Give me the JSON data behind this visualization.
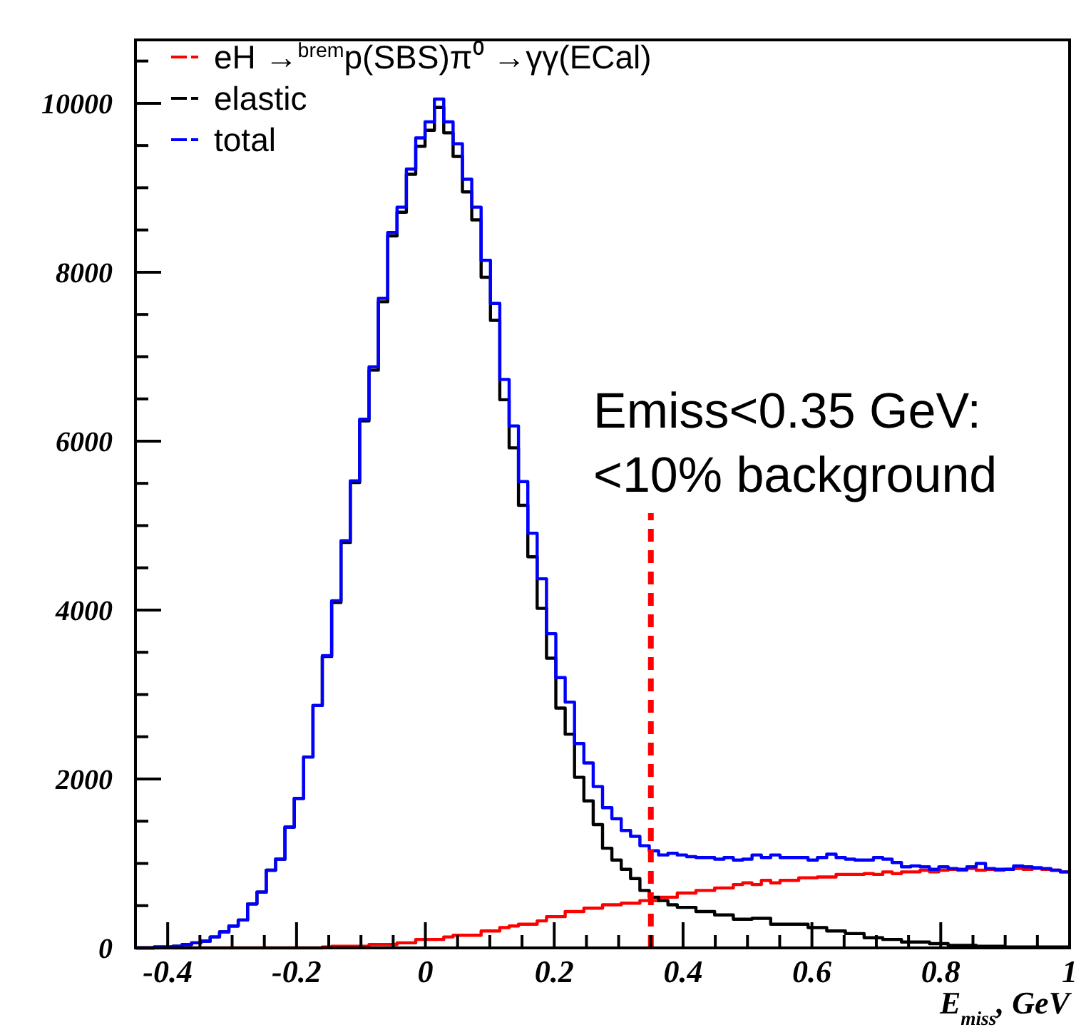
{
  "chart_data": {
    "type": "histogram",
    "bins": [
      -0.45,
      -0.4355,
      -0.421,
      -0.4065,
      -0.392,
      -0.3775,
      -0.363,
      -0.3485,
      -0.334,
      -0.3195,
      -0.305,
      -0.2905,
      -0.276,
      -0.2615,
      -0.247,
      -0.2325,
      -0.218,
      -0.2035,
      -0.189,
      -0.1745,
      -0.16,
      -0.1455,
      -0.131,
      -0.1165,
      -0.102,
      -0.0875,
      -0.073,
      -0.0585,
      -0.044,
      -0.0295,
      -0.015,
      -0.0005,
      0.014,
      0.0285,
      0.043,
      0.0575,
      0.072,
      0.0865,
      0.101,
      0.1155,
      0.13,
      0.1445,
      0.159,
      0.1735,
      0.188,
      0.2025,
      0.217,
      0.2315,
      0.246,
      0.2605,
      0.275,
      0.2895,
      0.304,
      0.3185,
      0.333,
      0.3475,
      0.362,
      0.3765,
      0.391,
      0.4055,
      0.42,
      0.4345,
      0.449,
      0.4635,
      0.478,
      0.4925,
      0.507,
      0.5215,
      0.536,
      0.5505,
      0.565,
      0.5795,
      0.594,
      0.6085,
      0.623,
      0.6375,
      0.652,
      0.6665,
      0.681,
      0.6955,
      0.71,
      0.7245,
      0.739,
      0.7535,
      0.768,
      0.7825,
      0.797,
      0.8115,
      0.826,
      0.8405,
      0.855,
      0.8695,
      0.884,
      0.8985,
      0.913,
      0.9275,
      0.942,
      0.9565,
      0.971,
      0.9855,
      1.0
    ],
    "series": [
      {
        "name": "eH →$^{brem}$p(SBS)π⁰ →γγ(ECal)",
        "color": "#ff0000",
        "values": [
          0,
          0,
          0,
          0,
          0,
          0,
          0,
          0,
          0,
          0,
          0,
          0,
          0,
          0,
          0,
          0,
          0,
          0,
          0,
          0,
          10,
          20,
          20,
          20,
          20,
          40,
          40,
          40,
          60,
          60,
          100,
          100,
          100,
          130,
          150,
          150,
          150,
          200,
          200,
          240,
          260,
          280,
          280,
          320,
          370,
          370,
          430,
          430,
          470,
          470,
          510,
          510,
          530,
          530,
          560,
          560,
          600,
          600,
          650,
          650,
          680,
          680,
          710,
          710,
          750,
          770,
          750,
          800,
          770,
          800,
          800,
          830,
          830,
          840,
          840,
          870,
          870,
          870,
          880,
          870,
          900,
          880,
          900,
          900,
          920,
          900,
          920,
          930,
          920,
          940,
          920,
          930,
          920,
          930,
          940,
          930,
          940,
          930,
          920,
          900
        ]
      },
      {
        "name": "elastic",
        "color": "#000000",
        "values": [
          0,
          0,
          10,
          10,
          20,
          40,
          60,
          80,
          130,
          190,
          260,
          330,
          520,
          660,
          920,
          1050,
          1430,
          1770,
          2260,
          2870,
          3450,
          4090,
          4800,
          5510,
          6240,
          6840,
          7650,
          8430,
          8710,
          9160,
          9490,
          9680,
          9950,
          9650,
          9370,
          8950,
          8620,
          7940,
          7430,
          6490,
          5920,
          5240,
          4630,
          4020,
          3430,
          2840,
          2530,
          2020,
          1740,
          1460,
          1180,
          1040,
          930,
          820,
          680,
          600,
          560,
          510,
          480,
          480,
          430,
          430,
          390,
          390,
          340,
          340,
          350,
          350,
          280,
          280,
          280,
          280,
          240,
          240,
          200,
          200,
          170,
          170,
          120,
          120,
          100,
          100,
          70,
          70,
          70,
          50,
          50,
          30,
          30,
          30,
          20,
          20,
          20,
          10,
          10,
          10,
          10,
          10,
          10,
          10
        ]
      },
      {
        "name": "total",
        "color": "#0000ff",
        "values": [
          0,
          0,
          10,
          10,
          20,
          40,
          60,
          80,
          130,
          190,
          260,
          330,
          520,
          660,
          920,
          1050,
          1430,
          1770,
          2260,
          2870,
          3460,
          4110,
          4820,
          5530,
          6260,
          6880,
          7690,
          8470,
          8770,
          9220,
          9590,
          9780,
          10050,
          9780,
          9520,
          9100,
          8770,
          8140,
          7630,
          6730,
          6180,
          5520,
          4910,
          4370,
          3720,
          3200,
          2910,
          2420,
          2190,
          1910,
          1660,
          1530,
          1390,
          1320,
          1210,
          1150,
          1100,
          1120,
          1100,
          1080,
          1070,
          1070,
          1050,
          1070,
          1040,
          1050,
          1100,
          1070,
          1100,
          1070,
          1070,
          1070,
          1040,
          1070,
          1110,
          1070,
          1050,
          1040,
          1040,
          1070,
          1050,
          1010,
          960,
          970,
          960,
          930,
          960,
          940,
          930,
          960,
          1000,
          940,
          930,
          930,
          970,
          960,
          950,
          940,
          920,
          900
        ]
      }
    ],
    "xlim": [
      -0.45,
      1
    ],
    "ylim": [
      0,
      10750
    ],
    "xticks": [
      -0.4,
      {
        "value": -0.35,
        "label": null
      },
      {
        "value": -0.3,
        "label": null
      },
      {
        "value": -0.25,
        "label": null
      },
      -0.2,
      {
        "value": -0.15,
        "label": null
      },
      {
        "value": -0.1,
        "label": null
      },
      {
        "value": -0.05,
        "label": null
      },
      0,
      {
        "value": 0.05,
        "label": null
      },
      {
        "value": 0.1,
        "label": null
      },
      {
        "value": 0.15,
        "label": null
      },
      0.2,
      {
        "value": 0.25,
        "label": null
      },
      {
        "value": 0.3,
        "label": null
      },
      {
        "value": 0.35,
        "label": null
      },
      0.4,
      {
        "value": 0.45,
        "label": null
      },
      {
        "value": 0.5,
        "label": null
      },
      {
        "value": 0.55,
        "label": null
      },
      0.6,
      {
        "value": 0.65,
        "label": null
      },
      {
        "value": 0.7,
        "label": null
      },
      {
        "value": 0.75,
        "label": null
      },
      0.8,
      {
        "value": 0.85,
        "label": null
      },
      {
        "value": 0.9,
        "label": null
      },
      {
        "value": 0.95,
        "label": null
      },
      1
    ],
    "yticks": [
      0,
      {
        "value": 500,
        "label": null
      },
      {
        "value": 1000,
        "label": null
      },
      {
        "value": 1500,
        "label": null
      },
      2000,
      {
        "value": 2500,
        "label": null
      },
      {
        "value": 3000,
        "label": null
      },
      {
        "value": 3500,
        "label": null
      },
      4000,
      {
        "value": 4500,
        "label": null
      },
      {
        "value": 5000,
        "label": null
      },
      {
        "value": 5500,
        "label": null
      },
      6000,
      {
        "value": 6500,
        "label": null
      },
      {
        "value": 7000,
        "label": null
      },
      {
        "value": 7500,
        "label": null
      },
      8000,
      {
        "value": 8500,
        "label": null
      },
      {
        "value": 9000,
        "label": null
      },
      {
        "value": 9500,
        "label": null
      },
      10000,
      {
        "value": 10500,
        "label": null
      }
    ],
    "xlabel": "E$_{miss}$, GeV",
    "annotations": [
      "Emiss<0.35 GeV:",
      "<10% background"
    ],
    "ref_lines": [
      {
        "axis": "x",
        "value": 0.35,
        "color": "#ff0000",
        "line_style": "dashed"
      }
    ],
    "legend": "top left",
    "grid": false
  }
}
